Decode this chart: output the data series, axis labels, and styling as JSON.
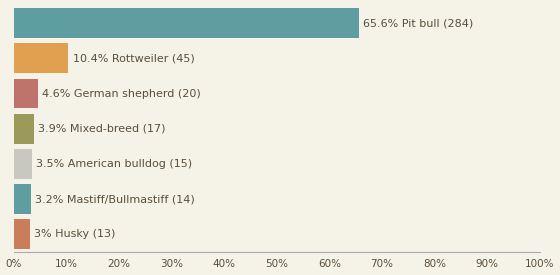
{
  "categories": [
    "3% Husky (13)",
    "3.2% Mastiff/Bullmastiff (14)",
    "3.5% American bulldog (15)",
    "3.9% Mixed-breed (17)",
    "4.6% German shepherd (20)",
    "10.4% Rottweiler (45)",
    "65.6% Pit bull (284)"
  ],
  "values": [
    3.0,
    3.2,
    3.5,
    3.9,
    4.6,
    10.4,
    65.6
  ],
  "bar_colors": [
    "#c97d5b",
    "#5f9ea0",
    "#c8c8c0",
    "#9b9a5a",
    "#c0736a",
    "#e0a050",
    "#5f9ea0"
  ],
  "background_color": "#f5f3e8",
  "text_color": "#5a4e3a",
  "xlim": [
    0,
    100
  ],
  "xtick_labels": [
    "0%",
    "10%",
    "20%",
    "30%",
    "40%",
    "50%",
    "60%",
    "70%",
    "80%",
    "90%",
    "100%"
  ],
  "xtick_values": [
    0,
    10,
    20,
    30,
    40,
    50,
    60,
    70,
    80,
    90,
    100
  ],
  "label_fontsize": 8,
  "tick_fontsize": 7.5,
  "bar_height": 0.85
}
